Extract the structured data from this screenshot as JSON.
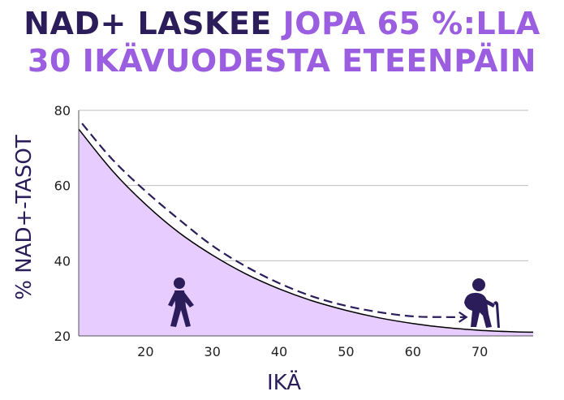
{
  "title": {
    "line1_dark": "NAD+ LASKEE",
    "line1_purple": "JOPA 65 %:LLA",
    "line2_purple": "30 IKÄVUODESTA ETEENPÄIN"
  },
  "colors": {
    "dark": "#2b1d5a",
    "purple": "#9b5ee0",
    "fill": "#e6ccff",
    "grid": "#bdbdbd"
  },
  "icons": [
    "young-person-walking-icon",
    "elderly-person-with-cane-icon"
  ],
  "chart_data": {
    "type": "area",
    "xlabel": "IKÄ",
    "ylabel": "% NAD+-TASOT",
    "xlim": [
      10,
      78
    ],
    "ylim": [
      20,
      80
    ],
    "xticks": [
      20,
      30,
      40,
      50,
      60,
      70
    ],
    "yticks": [
      20,
      40,
      60,
      80
    ],
    "grid": "horizontal",
    "series": [
      {
        "style": "solid-area",
        "x": [
          10,
          15,
          20,
          25,
          30,
          35,
          40,
          45,
          50,
          55,
          60,
          65,
          70,
          75,
          78
        ],
        "y": [
          75,
          64,
          55,
          47.5,
          41.5,
          36.5,
          32.5,
          29.3,
          26.8,
          24.8,
          23.3,
          22.2,
          21.5,
          21.1,
          21
        ]
      },
      {
        "style": "dashed-arrow",
        "x": [
          10.5,
          15,
          20,
          25,
          30,
          35,
          40,
          45,
          50,
          55,
          60,
          65,
          68
        ],
        "y": [
          76.5,
          67,
          58.5,
          51,
          44,
          38.5,
          34,
          30.5,
          28,
          26.3,
          25.2,
          25,
          25
        ]
      }
    ]
  }
}
